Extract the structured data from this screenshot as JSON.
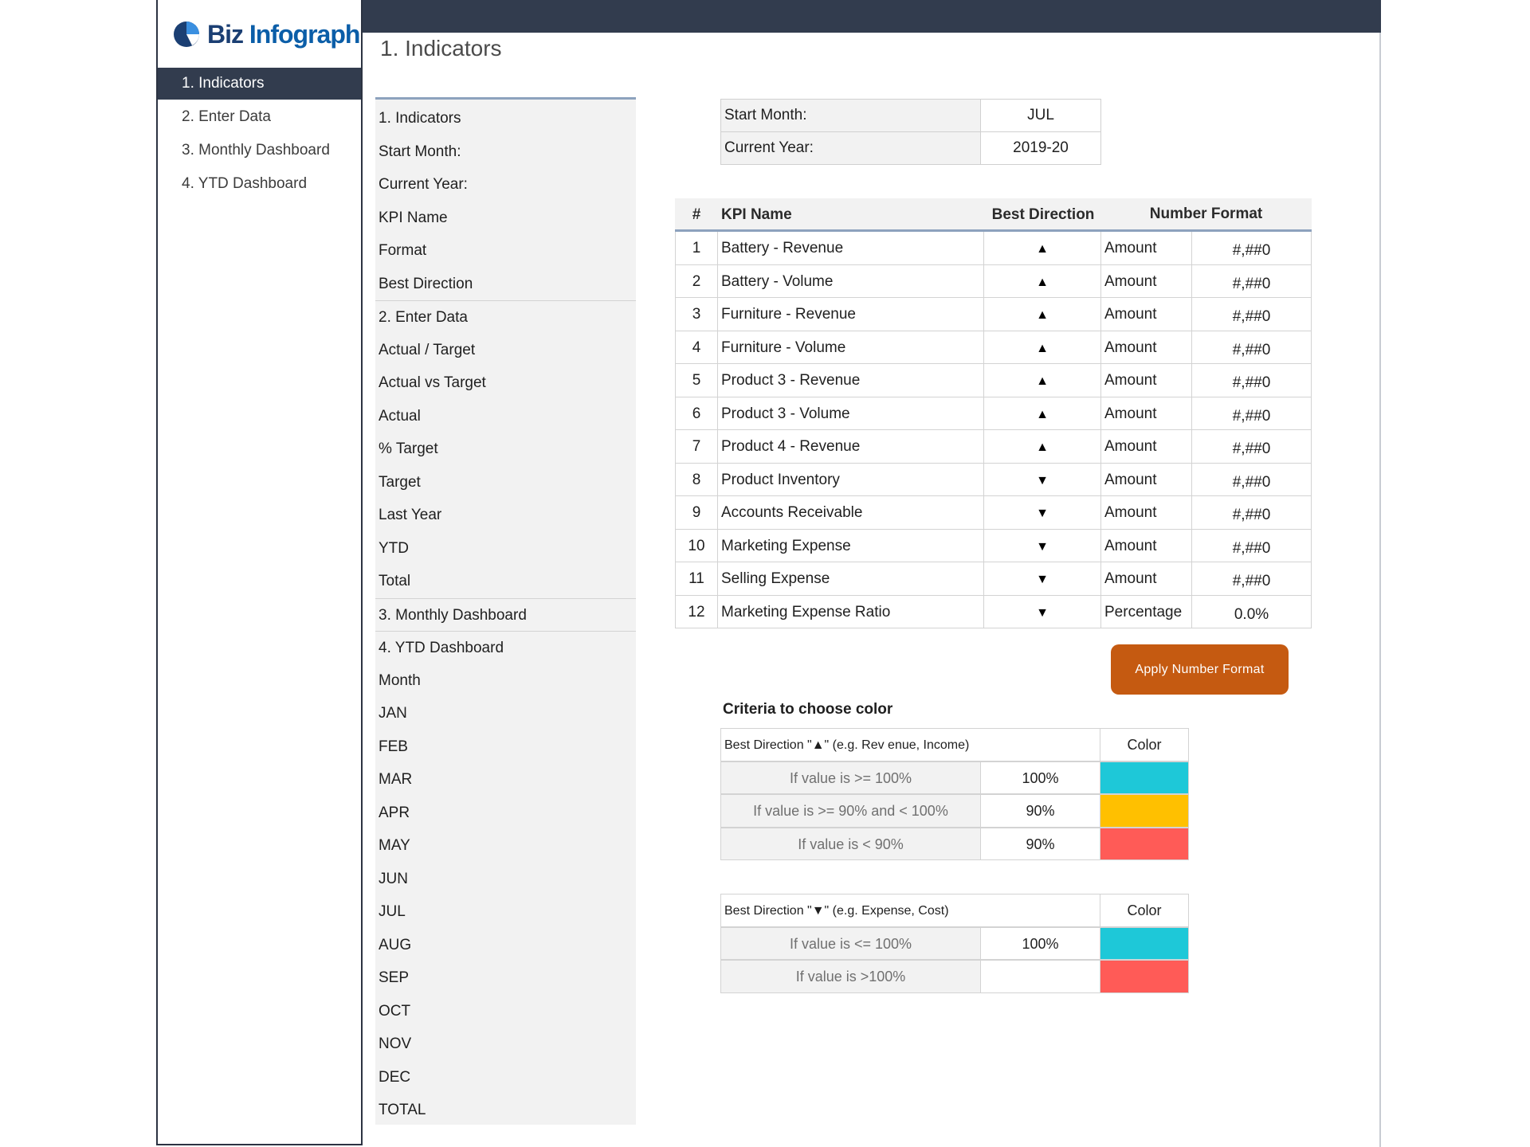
{
  "brand": {
    "name_part1": "Biz",
    "name_part2": "Infograph"
  },
  "sidebar": {
    "items": [
      {
        "label": "1. Indicators",
        "active": true
      },
      {
        "label": "2. Enter Data",
        "active": false
      },
      {
        "label": "3. Monthly Dashboard",
        "active": false
      },
      {
        "label": "4. YTD Dashboard",
        "active": false
      }
    ]
  },
  "page": {
    "title": "1. Indicators"
  },
  "names_list": [
    "1. Indicators",
    "Start Month:",
    "Current Year:",
    "KPI Name",
    "Format",
    "Best Direction",
    "2. Enter Data",
    "Actual / Target",
    "Actual vs Target",
    "Actual",
    "% Target",
    "Target",
    "Last Year",
    "YTD",
    "Total",
    "3. Monthly Dashboard",
    "4. YTD Dashboard",
    "Month",
    "JAN",
    "FEB",
    "MAR",
    "APR",
    "MAY",
    "JUN",
    "JUL",
    "AUG",
    "SEP",
    "OCT",
    "NOV",
    "DEC",
    "TOTAL"
  ],
  "settings": {
    "start_month_label": "Start Month:",
    "start_month_value": "JUL",
    "current_year_label": "Current Year:",
    "current_year_value": "2019-20"
  },
  "kpi_table": {
    "headers": {
      "num": "#",
      "name": "KPI Name",
      "direction": "Best Direction",
      "format": "Number Format"
    },
    "rows": [
      {
        "num": "1",
        "name": "Battery - Revenue",
        "direction": "up",
        "arrow": "▲",
        "format_type": "Amount",
        "format_code": "#,##0"
      },
      {
        "num": "2",
        "name": "Battery - Volume",
        "direction": "up",
        "arrow": "▲",
        "format_type": "Amount",
        "format_code": "#,##0"
      },
      {
        "num": "3",
        "name": "Furniture - Revenue",
        "direction": "up",
        "arrow": "▲",
        "format_type": "Amount",
        "format_code": "#,##0"
      },
      {
        "num": "4",
        "name": "Furniture - Volume",
        "direction": "up",
        "arrow": "▲",
        "format_type": "Amount",
        "format_code": "#,##0"
      },
      {
        "num": "5",
        "name": "Product 3 - Revenue",
        "direction": "up",
        "arrow": "▲",
        "format_type": "Amount",
        "format_code": "#,##0"
      },
      {
        "num": "6",
        "name": "Product 3 - Volume",
        "direction": "up",
        "arrow": "▲",
        "format_type": "Amount",
        "format_code": "#,##0"
      },
      {
        "num": "7",
        "name": "Product 4 - Revenue",
        "direction": "up",
        "arrow": "▲",
        "format_type": "Amount",
        "format_code": "#,##0"
      },
      {
        "num": "8",
        "name": "Product Inventory",
        "direction": "down",
        "arrow": "▼",
        "format_type": "Amount",
        "format_code": "#,##0"
      },
      {
        "num": "9",
        "name": "Accounts Receivable",
        "direction": "down",
        "arrow": "▼",
        "format_type": "Amount",
        "format_code": "#,##0"
      },
      {
        "num": "10",
        "name": "Marketing Expense",
        "direction": "down",
        "arrow": "▼",
        "format_type": "Amount",
        "format_code": "#,##0"
      },
      {
        "num": "11",
        "name": "Selling Expense",
        "direction": "down",
        "arrow": "▼",
        "format_type": "Amount",
        "format_code": "#,##0"
      },
      {
        "num": "12",
        "name": "Marketing Expense Ratio",
        "direction": "down",
        "arrow": "▼",
        "format_type": "Percentage",
        "format_code": "0.0%"
      }
    ]
  },
  "apply_button": {
    "label": "Apply Number Format"
  },
  "criteria": {
    "title": "Criteria to choose color",
    "color_header": "Color",
    "up": {
      "header": "Best Direction \"▲\" (e.g. Rev enue, Income)",
      "rows": [
        {
          "condition": "If value is >= 100%",
          "value": "100%",
          "color": "#1ec8d8"
        },
        {
          "condition": "If value is >= 90% and < 100%",
          "value": "90%",
          "color": "#ffc000"
        },
        {
          "condition": "If value is < 90%",
          "value": "90%",
          "color": "#ff5b57"
        }
      ]
    },
    "down": {
      "header": "Best Direction \"▼\" (e.g. Expense, Cost)",
      "rows": [
        {
          "condition": "If value is <= 100%",
          "value": "100%",
          "color": "#1ec8d8"
        },
        {
          "condition": "If value is >100%",
          "value": "",
          "color": "#ff5b57"
        }
      ]
    }
  },
  "colors": {
    "nav_dark": "#323c4e",
    "accent_button": "#c55a11",
    "logo_blue": "#0b5ea8"
  }
}
